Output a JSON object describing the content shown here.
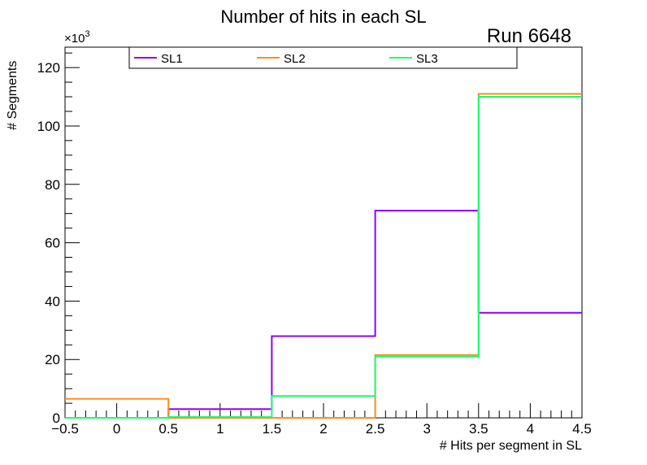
{
  "chart_data": {
    "type": "histogram",
    "title": "Number of hits in each SL",
    "annotation": "Run 6648",
    "xlabel": "# Hits per segment in SL",
    "ylabel": "# Segments",
    "y_multiplier": "×10",
    "y_multiplier_exp": "3",
    "xlim": [
      -0.5,
      4.5
    ],
    "ylim": [
      0,
      127
    ],
    "x_ticks": [
      "−0.5",
      "0",
      "0.5",
      "1",
      "1.5",
      "2",
      "2.5",
      "3",
      "3.5",
      "4",
      "4.5"
    ],
    "y_ticks": [
      "0",
      "20",
      "40",
      "60",
      "80",
      "100",
      "120"
    ],
    "bin_edges": [
      -0.5,
      0.5,
      1.5,
      2.5,
      3.5,
      4.5
    ],
    "legend_position": "top",
    "series": [
      {
        "name": "SL1",
        "color": "#8b00ff",
        "values": [
          0,
          3,
          28,
          71,
          36
        ]
      },
      {
        "name": "SL2",
        "color": "#ff8c1a",
        "values": [
          6.5,
          0,
          0,
          21.5,
          111
        ]
      },
      {
        "name": "SL3",
        "color": "#19ff6e",
        "values": [
          0,
          0.3,
          7.5,
          21,
          110
        ]
      }
    ]
  }
}
